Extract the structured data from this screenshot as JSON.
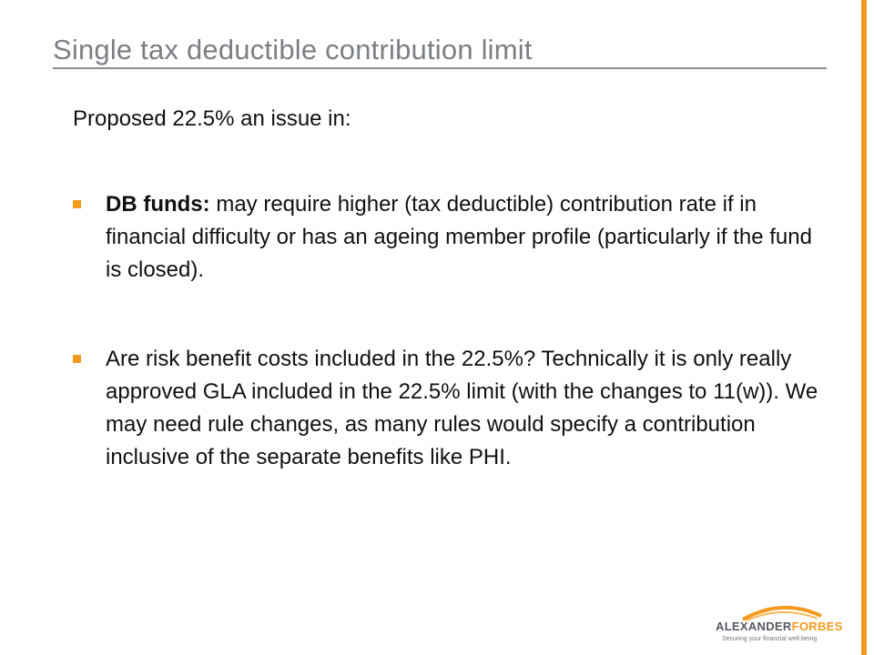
{
  "slide": {
    "title": "Single tax deductible contribution limit",
    "intro": "Proposed 22.5% an issue in:",
    "bullets": [
      {
        "lead": "DB funds:",
        "text": " may require higher (tax deductible) contribution rate if in financial difficulty or has an ageing member profile (particularly if the fund is closed)."
      },
      {
        "lead": "",
        "text": "Are risk benefit costs included in the 22.5%? Technically it is only really approved GLA included in the 22.5% limit (with the changes to 11(w)). We may need rule changes, as many rules would specify a contribution inclusive of the separate benefits like PHI."
      }
    ]
  },
  "logo": {
    "name_part1": "ALEXANDER",
    "name_part2": "FORBES",
    "tagline": "Securing your financial well-being"
  },
  "colors": {
    "accent": "#f39a1e",
    "title": "#7b7f84",
    "text": "#111111"
  }
}
